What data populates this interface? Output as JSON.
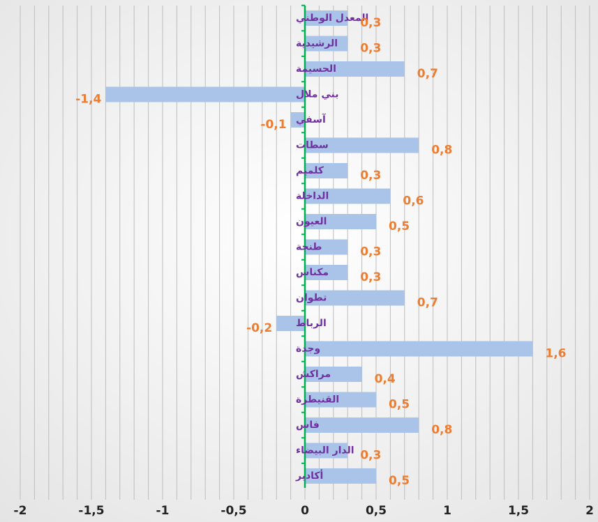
{
  "chart_data": {
    "type": "barh",
    "categories": [
      "المعدل الوطني",
      "الرشيدية",
      "الحسيمة",
      "بني ملال",
      "آسفي",
      "سطات",
      "كلميم",
      "الداخلة",
      "العيون",
      "طنجة",
      "مكناس",
      "تطوان",
      "الرباط",
      "وجدة",
      "مراكش",
      "القنيطرة",
      "فاس",
      "الدار البيضاء",
      "أكادير"
    ],
    "values": [
      0.3,
      0.3,
      0.7,
      -1.4,
      -0.1,
      0.8,
      0.3,
      0.6,
      0.5,
      0.3,
      0.3,
      0.7,
      -0.2,
      1.6,
      0.4,
      0.5,
      0.8,
      0.3,
      0.5
    ],
    "value_labels": [
      "0,3",
      "0,3",
      "0,7",
      "-1,4",
      "-0,1",
      "0,8",
      "0,3",
      "0,6",
      "0,5",
      "0,3",
      "0,3",
      "0,7",
      "-0,2",
      "1,6",
      "0,4",
      "0,5",
      "0,8",
      "0,3",
      "0,5"
    ],
    "color": "#a9c4e8",
    "label_color": "#ed7d31",
    "category_color": "#7030a0",
    "axis_color": "#00b050",
    "xlim": [
      -2,
      2
    ],
    "xticks": [
      -2,
      {
        "value": -1.5,
        "label": "-1,5"
      },
      -1,
      {
        "value": -0.5,
        "label": "-0,5"
      },
      0,
      {
        "value": 0.5,
        "label": "0,5"
      },
      1,
      {
        "value": 1.5,
        "label": "1,5"
      },
      2
    ],
    "xgrid": [
      -2,
      -1.9,
      -1.8,
      -1.7,
      -1.6,
      -1.5,
      -1.4,
      -1.3,
      -1.2,
      -1.1,
      -1,
      -0.9,
      -0.8,
      -0.7,
      -0.6,
      -0.5,
      -0.4,
      -0.3,
      -0.2,
      -0.1,
      0,
      0.1,
      0.2,
      0.3,
      0.4,
      0.5,
      0.6,
      0.7,
      0.8,
      0.9,
      1,
      1.1,
      1.2,
      1.3,
      1.4,
      1.5,
      1.6,
      1.7,
      1.8,
      1.9,
      2
    ],
    "grid": true
  }
}
